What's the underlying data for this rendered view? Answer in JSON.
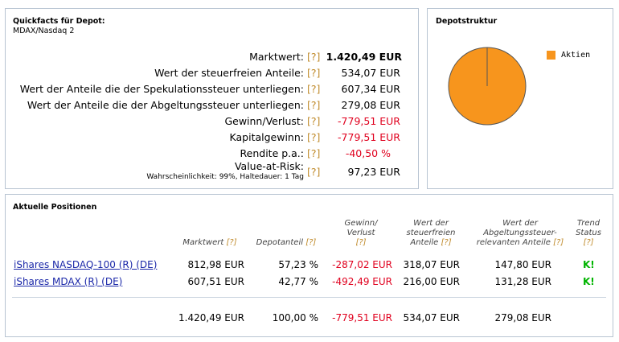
{
  "quickfacts": {
    "title": "Quickfacts für Depot:",
    "subtitle": "MDAX/Nasdaq 2",
    "help": "[?]",
    "rows": [
      {
        "label": "Marktwert:",
        "value": "1.420,49 EUR"
      },
      {
        "label": "Wert der steuerfreien Anteile:",
        "value": "534,07 EUR"
      },
      {
        "label": "Wert der Anteile die der Spekulationssteuer unterliegen:",
        "value": "607,34 EUR"
      },
      {
        "label": "Wert der Anteile die der Abgeltungssteuer unterliegen:",
        "value": "279,08 EUR"
      },
      {
        "label": "Gewinn/Verlust:",
        "value": "-779,51 EUR"
      },
      {
        "label": "Kapitalgewinn:",
        "value": "-779,51 EUR"
      },
      {
        "label": "Rendite p.a.:",
        "value": "-40,50 %"
      },
      {
        "label": "Value-at-Risk:",
        "note": "Wahrscheinlichkeit: 99%, Haltedauer: 1 Tag",
        "value": "97,23 EUR"
      }
    ]
  },
  "depotstruktur": {
    "title": "Depotstruktur",
    "legend": "Aktien",
    "color": "#f7951d"
  },
  "chart_data": {
    "type": "pie",
    "title": "Depotstruktur",
    "categories": [
      "Aktien"
    ],
    "values": [
      100
    ],
    "colors": [
      "#f7951d"
    ],
    "legend_position": "right"
  },
  "positions": {
    "title": "Aktuelle Positionen",
    "headers": {
      "marktwert": [
        "Marktwert",
        "[?]"
      ],
      "depotanteil": [
        "Depotanteil",
        "[?]"
      ],
      "gewinn": [
        "Gewinn/",
        "Verlust",
        "[?]"
      ],
      "steuerfrei": [
        "Wert der",
        "steuerfreien",
        "Anteile",
        "[?]"
      ],
      "abgeltung": [
        "Wert der",
        "Abgeltungssteuer-",
        "relevanten Anteile",
        "[?]"
      ],
      "trend": [
        "Trend",
        "Status",
        "[?]"
      ]
    },
    "rows": [
      {
        "name": "iShares NASDAQ-100 (R) (DE)",
        "marktwert": "812,98 EUR",
        "depotanteil": "57,23 %",
        "gewinn": "-287,02 EUR",
        "steuerfrei": "318,07 EUR",
        "abgeltung": "147,80 EUR",
        "trend": "K!"
      },
      {
        "name": "iShares MDAX (R) (DE)",
        "marktwert": "607,51 EUR",
        "depotanteil": "42,77 %",
        "gewinn": "-492,49 EUR",
        "steuerfrei": "216,00 EUR",
        "abgeltung": "131,28 EUR",
        "trend": "K!"
      }
    ],
    "total": {
      "marktwert": "1.420,49 EUR",
      "depotanteil": "100,00 %",
      "gewinn": "-779,51 EUR",
      "steuerfrei": "534,07 EUR",
      "abgeltung": "279,08 EUR"
    }
  }
}
